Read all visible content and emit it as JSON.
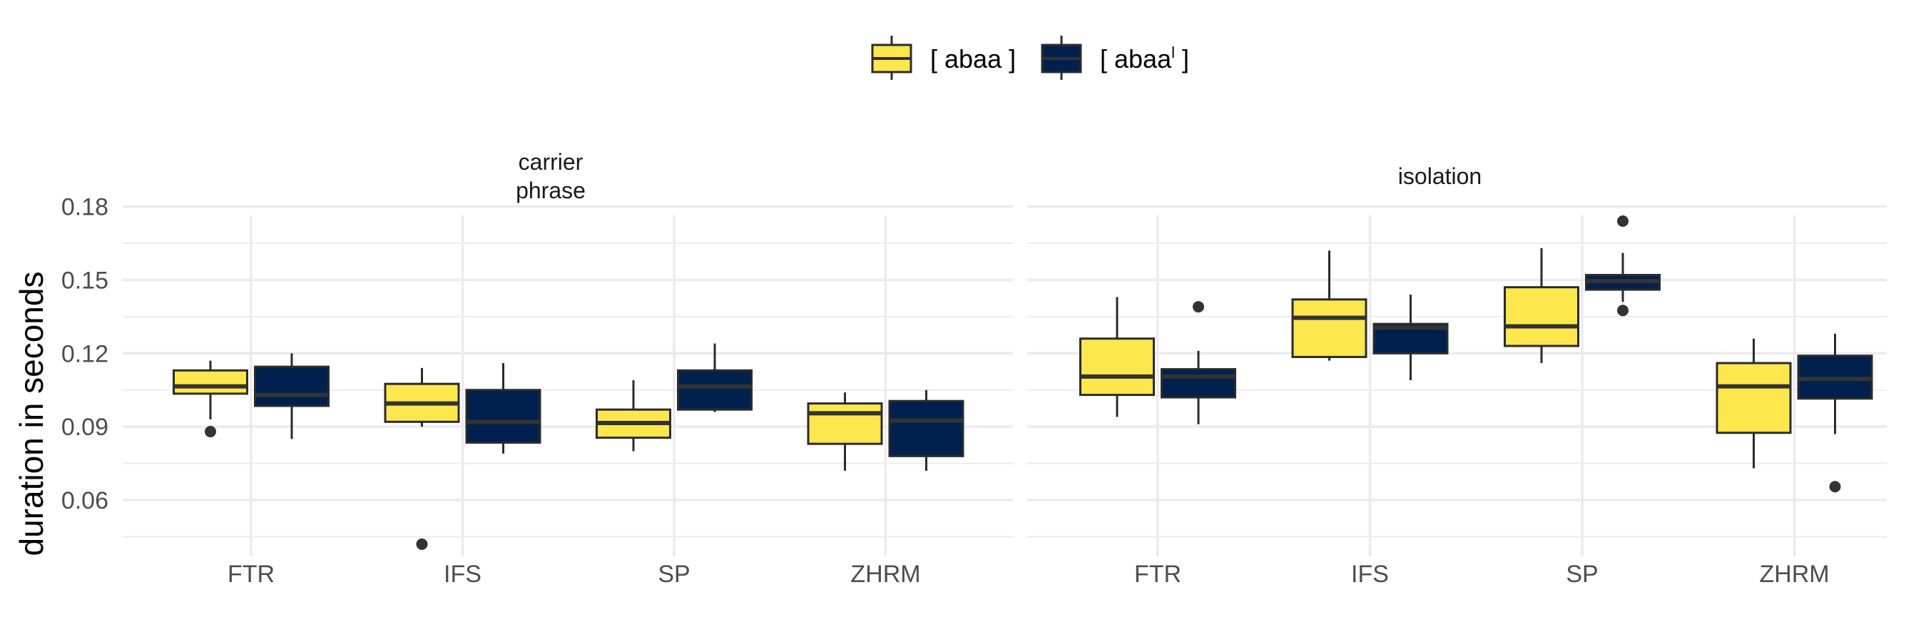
{
  "chart_data": {
    "type": "boxplot",
    "y_label": "duration in seconds",
    "y_ticks": [
      "0.06",
      "0.09",
      "0.12",
      "0.15",
      "0.18"
    ],
    "y_range": [
      0.037,
      0.188
    ],
    "categories": [
      "FTR",
      "IFS",
      "SP",
      "ZHRM"
    ],
    "legend": {
      "position": "top",
      "entries": [
        {
          "label": "[ abaa ]",
          "color": "#fde74c"
        },
        {
          "label": "[ abaa",
          "superscript": "l",
          "suffix": " ]",
          "color": "#00204d"
        }
      ]
    },
    "panels": [
      {
        "strip_lines": [
          "carrier",
          "phrase"
        ],
        "boxes": [
          {
            "category": "FTR",
            "series": 0,
            "whisker_low": 0.093,
            "q1": 0.1035,
            "median": 0.1065,
            "q3": 0.113,
            "whisker_high": 0.117,
            "outliers": [
              0.088
            ]
          },
          {
            "category": "FTR",
            "series": 1,
            "whisker_low": 0.085,
            "q1": 0.0985,
            "median": 0.103,
            "q3": 0.1145,
            "whisker_high": 0.12,
            "outliers": []
          },
          {
            "category": "IFS",
            "series": 0,
            "whisker_low": 0.09,
            "q1": 0.092,
            "median": 0.0995,
            "q3": 0.1075,
            "whisker_high": 0.114,
            "outliers": [
              0.042
            ]
          },
          {
            "category": "IFS",
            "series": 1,
            "whisker_low": 0.079,
            "q1": 0.0835,
            "median": 0.092,
            "q3": 0.105,
            "whisker_high": 0.116,
            "outliers": []
          },
          {
            "category": "SP",
            "series": 0,
            "whisker_low": 0.08,
            "q1": 0.0855,
            "median": 0.0915,
            "q3": 0.097,
            "whisker_high": 0.109,
            "outliers": []
          },
          {
            "category": "SP",
            "series": 1,
            "whisker_low": 0.096,
            "q1": 0.097,
            "median": 0.1065,
            "q3": 0.113,
            "whisker_high": 0.124,
            "outliers": []
          },
          {
            "category": "ZHRM",
            "series": 0,
            "whisker_low": 0.072,
            "q1": 0.083,
            "median": 0.0955,
            "q3": 0.0995,
            "whisker_high": 0.104,
            "outliers": []
          },
          {
            "category": "ZHRM",
            "series": 1,
            "whisker_low": 0.072,
            "q1": 0.078,
            "median": 0.0925,
            "q3": 0.1005,
            "whisker_high": 0.105,
            "outliers": []
          }
        ]
      },
      {
        "strip_lines": [
          "isolation"
        ],
        "boxes": [
          {
            "category": "FTR",
            "series": 0,
            "whisker_low": 0.094,
            "q1": 0.103,
            "median": 0.1105,
            "q3": 0.126,
            "whisker_high": 0.143,
            "outliers": []
          },
          {
            "category": "FTR",
            "series": 1,
            "whisker_low": 0.091,
            "q1": 0.102,
            "median": 0.1105,
            "q3": 0.1135,
            "whisker_high": 0.121,
            "outliers": [
              0.139
            ]
          },
          {
            "category": "IFS",
            "series": 0,
            "whisker_low": 0.117,
            "q1": 0.1185,
            "median": 0.1345,
            "q3": 0.142,
            "whisker_high": 0.162,
            "outliers": []
          },
          {
            "category": "IFS",
            "series": 1,
            "whisker_low": 0.109,
            "q1": 0.12,
            "median": 0.1305,
            "q3": 0.132,
            "whisker_high": 0.144,
            "outliers": []
          },
          {
            "category": "SP",
            "series": 0,
            "whisker_low": 0.116,
            "q1": 0.123,
            "median": 0.131,
            "q3": 0.147,
            "whisker_high": 0.163,
            "outliers": []
          },
          {
            "category": "SP",
            "series": 1,
            "whisker_low": 0.141,
            "q1": 0.146,
            "median": 0.1495,
            "q3": 0.152,
            "whisker_high": 0.161,
            "outliers": [
              0.174,
              0.1375
            ]
          },
          {
            "category": "ZHRM",
            "series": 0,
            "whisker_low": 0.073,
            "q1": 0.0875,
            "median": 0.1065,
            "q3": 0.116,
            "whisker_high": 0.126,
            "outliers": []
          },
          {
            "category": "ZHRM",
            "series": 1,
            "whisker_low": 0.087,
            "q1": 0.1015,
            "median": 0.1095,
            "q3": 0.119,
            "whisker_high": 0.128,
            "outliers": [
              0.0655
            ]
          }
        ]
      }
    ]
  }
}
